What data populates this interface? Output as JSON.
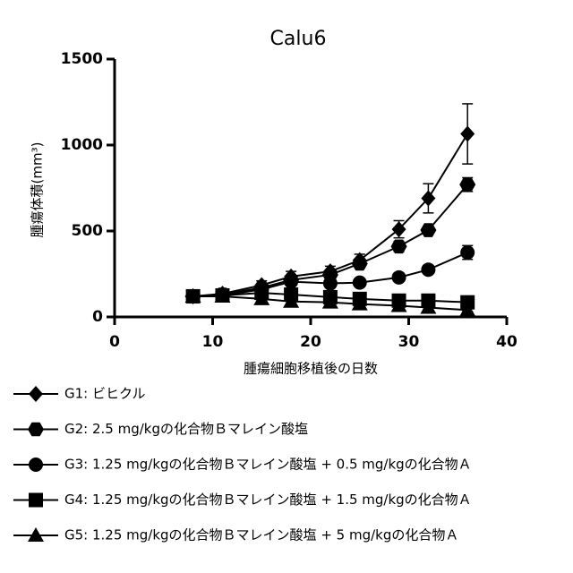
{
  "chart_data": {
    "type": "line",
    "title": "Calu6",
    "x_label": "腫瘍細胞移植後の日数",
    "y_label": "腫瘍体積(mm³)",
    "x": [
      8,
      11,
      15,
      18,
      22,
      25,
      29,
      32,
      36
    ],
    "xlim": [
      0,
      40
    ],
    "xticks": [
      0,
      10,
      20,
      30,
      40
    ],
    "ylim": [
      0,
      1500
    ],
    "yticks": [
      0,
      500,
      1000,
      1500
    ],
    "series": [
      {
        "name": "G1: ビヒクル",
        "color": "#000000",
        "marker": "diamond",
        "values": [
          120,
          135,
          185,
          235,
          265,
          330,
          510,
          690,
          1065
        ],
        "errors": [
          15,
          15,
          25,
          30,
          30,
          35,
          50,
          85,
          175
        ]
      },
      {
        "name": "G2: 2.5 mg/kgの化合物Ｂマレイン酸塩",
        "color": "#000000",
        "marker": "hexagon",
        "values": [
          120,
          130,
          170,
          215,
          245,
          310,
          410,
          505,
          770
        ],
        "errors": [
          10,
          10,
          15,
          20,
          20,
          25,
          30,
          25,
          40
        ]
      },
      {
        "name": "G3: 1.25 mg/kgの化合物Ｂマレイン酸塩 + 0.5 mg/kgの化合物Ａ",
        "color": "#000000",
        "marker": "circle",
        "values": [
          120,
          125,
          160,
          205,
          195,
          200,
          230,
          275,
          375
        ],
        "errors": [
          10,
          10,
          15,
          20,
          15,
          15,
          15,
          15,
          40
        ]
      },
      {
        "name": "G4: 1.25 mg/kgの化合物Ｂマレイン酸塩 + 1.5 mg/kgの化合物Ａ",
        "color": "#000000",
        "marker": "square",
        "values": [
          120,
          125,
          140,
          130,
          115,
          105,
          95,
          95,
          85
        ],
        "errors": [
          10,
          10,
          20,
          20,
          30,
          25,
          30,
          20,
          15
        ]
      },
      {
        "name": "G5: 1.25 mg/kgの化合物Ｂマレイン酸塩 + 5 mg/kgの化合物Ａ",
        "color": "#000000",
        "marker": "triangle",
        "values": [
          120,
          120,
          105,
          90,
          85,
          75,
          65,
          55,
          40
        ],
        "errors": [
          10,
          10,
          10,
          10,
          10,
          10,
          10,
          10,
          8
        ]
      }
    ]
  }
}
